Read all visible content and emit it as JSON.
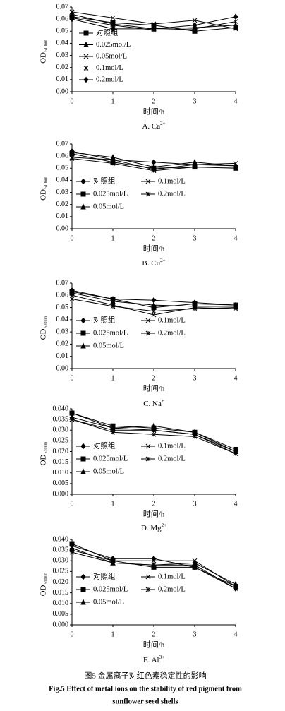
{
  "chart_data": [
    {
      "type": "line",
      "title": "A. Ca",
      "title_sup": "2+",
      "x_label": "时间/h",
      "y_label": "OD",
      "y_label_sub": "510nm",
      "x": [
        0,
        1,
        2,
        3,
        4
      ],
      "xlim": [
        0,
        4
      ],
      "xticks": [
        0,
        1,
        2,
        3,
        4
      ],
      "ylim": [
        0,
        0.07
      ],
      "yticks": [
        {
          "value": 0,
          "label": "0.00"
        },
        {
          "value": 0.01,
          "label": "0.01"
        },
        {
          "value": 0.02,
          "label": "0.02"
        },
        {
          "value": 0.03,
          "label": "0.03"
        },
        {
          "value": 0.04,
          "label": "0.04"
        },
        {
          "value": 0.05,
          "label": "0.05"
        },
        {
          "value": 0.06,
          "label": "0.06"
        },
        {
          "value": 0.07,
          "label": "0.07"
        }
      ],
      "series": [
        {
          "name": "对照组",
          "marker": "square",
          "color": "#000000",
          "values": [
            0.062,
            0.057,
            0.055,
            0.05,
            0.053
          ]
        },
        {
          "name": "0.025mol/L",
          "marker": "triangle",
          "color": "#000000",
          "values": [
            0.064,
            0.056,
            0.052,
            0.053,
            0.055
          ]
        },
        {
          "name": "0.05mol/L",
          "marker": "x",
          "color": "#000000",
          "values": [
            0.066,
            0.061,
            0.056,
            0.059,
            0.052
          ]
        },
        {
          "name": "0.1mol/L",
          "marker": "star",
          "color": "#000000",
          "values": [
            0.061,
            0.055,
            0.051,
            0.052,
            0.058
          ]
        },
        {
          "name": "0.2mol/L",
          "marker": "diamond",
          "color": "#000000",
          "values": [
            0.06,
            0.052,
            0.052,
            0.055,
            0.062
          ]
        }
      ]
    },
    {
      "type": "line",
      "title": "B. Cu",
      "title_sup": "2+",
      "x_label": "时间/h",
      "y_label": "OD",
      "y_label_sub": "510nm",
      "x": [
        0,
        1,
        2,
        3,
        4
      ],
      "xlim": [
        0,
        4
      ],
      "xticks": [
        0,
        1,
        2,
        3,
        4
      ],
      "ylim": [
        0,
        0.07
      ],
      "yticks": [
        {
          "value": 0,
          "label": "0.00"
        },
        {
          "value": 0.01,
          "label": "0.01"
        },
        {
          "value": 0.02,
          "label": "0.02"
        },
        {
          "value": 0.03,
          "label": "0.03"
        },
        {
          "value": 0.04,
          "label": "0.04"
        },
        {
          "value": 0.05,
          "label": "0.05"
        },
        {
          "value": 0.06,
          "label": "0.06"
        },
        {
          "value": 0.07,
          "label": "0.07"
        }
      ],
      "series": [
        {
          "name": "对照组",
          "marker": "diamond",
          "color": "#000000",
          "values": [
            0.064,
            0.057,
            0.055,
            0.053,
            0.052
          ]
        },
        {
          "name": "0.025mol/L",
          "marker": "square",
          "color": "#000000",
          "values": [
            0.062,
            0.055,
            0.05,
            0.051,
            0.05
          ]
        },
        {
          "name": "0.05mol/L",
          "marker": "triangle",
          "color": "#000000",
          "values": [
            0.063,
            0.059,
            0.051,
            0.055,
            0.052
          ]
        },
        {
          "name": "0.1mol/L",
          "marker": "x",
          "color": "#000000",
          "values": [
            0.059,
            0.057,
            0.049,
            0.053,
            0.054
          ]
        },
        {
          "name": "0.2mol/L",
          "marker": "star",
          "color": "#000000",
          "values": [
            0.058,
            0.054,
            0.048,
            0.051,
            0.051
          ]
        }
      ]
    },
    {
      "type": "line",
      "title": "C. Na",
      "title_sup": "+",
      "x_label": "时间/h",
      "y_label": "OD",
      "y_label_sub": "510nm",
      "x": [
        0,
        1,
        2,
        3,
        4
      ],
      "xlim": [
        0,
        4
      ],
      "xticks": [
        0,
        1,
        2,
        3,
        4
      ],
      "ylim": [
        0,
        0.07
      ],
      "yticks": [
        {
          "value": 0,
          "label": "0.00"
        },
        {
          "value": 0.01,
          "label": "0.01"
        },
        {
          "value": 0.02,
          "label": "0.02"
        },
        {
          "value": 0.03,
          "label": "0.03"
        },
        {
          "value": 0.04,
          "label": "0.04"
        },
        {
          "value": 0.05,
          "label": "0.05"
        },
        {
          "value": 0.06,
          "label": "0.06"
        },
        {
          "value": 0.07,
          "label": "0.07"
        }
      ],
      "series": [
        {
          "name": "对照组",
          "marker": "diamond",
          "color": "#000000",
          "values": [
            0.064,
            0.057,
            0.056,
            0.054,
            0.052
          ]
        },
        {
          "name": "0.025mol/L",
          "marker": "square",
          "color": "#000000",
          "values": [
            0.063,
            0.057,
            0.05,
            0.053,
            0.052
          ]
        },
        {
          "name": "0.05mol/L",
          "marker": "triangle",
          "color": "#000000",
          "values": [
            0.062,
            0.055,
            0.052,
            0.051,
            0.051
          ]
        },
        {
          "name": "0.1mol/L",
          "marker": "x",
          "color": "#000000",
          "values": [
            0.06,
            0.052,
            0.044,
            0.05,
            0.049
          ]
        },
        {
          "name": "0.2mol/L",
          "marker": "star",
          "color": "#000000",
          "values": [
            0.057,
            0.051,
            0.047,
            0.049,
            0.05
          ]
        }
      ]
    },
    {
      "type": "line",
      "title": "D. Mg",
      "title_sup": "2+",
      "x_label": "时间/h",
      "y_label": "OD",
      "y_label_sub": "510nm",
      "x": [
        0,
        1,
        2,
        3,
        4
      ],
      "xlim": [
        0,
        4
      ],
      "xticks": [
        0,
        1,
        2,
        3,
        4
      ],
      "ylim": [
        0,
        0.04
      ],
      "yticks": [
        {
          "value": 0,
          "label": "0.000"
        },
        {
          "value": 0.005,
          "label": "0.005"
        },
        {
          "value": 0.01,
          "label": "0.010"
        },
        {
          "value": 0.015,
          "label": "0.015"
        },
        {
          "value": 0.02,
          "label": "0.020"
        },
        {
          "value": 0.025,
          "label": "0.025"
        },
        {
          "value": 0.03,
          "label": "0.030"
        },
        {
          "value": 0.035,
          "label": "0.035"
        },
        {
          "value": 0.04,
          "label": "0.040"
        }
      ],
      "series": [
        {
          "name": "对照组",
          "marker": "diamond",
          "color": "#000000",
          "values": [
            0.038,
            0.031,
            0.03,
            0.028,
            0.02
          ]
        },
        {
          "name": "0.025mol/L",
          "marker": "square",
          "color": "#000000",
          "values": [
            0.038,
            0.032,
            0.031,
            0.029,
            0.021
          ]
        },
        {
          "name": "0.05mol/L",
          "marker": "triangle",
          "color": "#000000",
          "values": [
            0.036,
            0.031,
            0.032,
            0.029,
            0.02
          ]
        },
        {
          "name": "0.1mol/L",
          "marker": "x",
          "color": "#000000",
          "values": [
            0.035,
            0.03,
            0.03,
            0.028,
            0.019
          ]
        },
        {
          "name": "0.2mol/L",
          "marker": "star",
          "color": "#000000",
          "values": [
            0.035,
            0.029,
            0.028,
            0.027,
            0.019
          ]
        }
      ]
    },
    {
      "type": "line",
      "title": "E. Al",
      "title_sup": "3+",
      "x_label": "时间/h",
      "y_label": "OD",
      "y_label_sub": "510nm",
      "x": [
        0,
        1,
        2,
        3,
        4
      ],
      "xlim": [
        0,
        4
      ],
      "xticks": [
        0,
        1,
        2,
        3,
        4
      ],
      "ylim": [
        0,
        0.04
      ],
      "yticks": [
        {
          "value": 0,
          "label": "0.000"
        },
        {
          "value": 0.005,
          "label": "0.005"
        },
        {
          "value": 0.01,
          "label": "0.010"
        },
        {
          "value": 0.015,
          "label": "0.015"
        },
        {
          "value": 0.02,
          "label": "0.020"
        },
        {
          "value": 0.025,
          "label": "0.025"
        },
        {
          "value": 0.03,
          "label": "0.030"
        },
        {
          "value": 0.035,
          "label": "0.035"
        },
        {
          "value": 0.04,
          "label": "0.040"
        }
      ],
      "series": [
        {
          "name": "对照组",
          "marker": "diamond",
          "color": "#000000",
          "values": [
            0.037,
            0.031,
            0.031,
            0.027,
            0.017
          ]
        },
        {
          "name": "0.025mol/L",
          "marker": "square",
          "color": "#000000",
          "values": [
            0.038,
            0.03,
            0.027,
            0.027,
            0.018
          ]
        },
        {
          "name": "0.05mol/L",
          "marker": "triangle",
          "color": "#000000",
          "values": [
            0.036,
            0.029,
            0.028,
            0.029,
            0.019
          ]
        },
        {
          "name": "0.1mol/L",
          "marker": "x",
          "color": "#000000",
          "values": [
            0.035,
            0.03,
            0.03,
            0.03,
            0.018
          ]
        },
        {
          "name": "0.2mol/L",
          "marker": "star",
          "color": "#000000",
          "values": [
            0.034,
            0.029,
            0.028,
            0.028,
            0.017
          ]
        }
      ]
    }
  ],
  "figure_caption": {
    "cn": "图5  金属离子对红色素稳定性的影响",
    "en_line1": "Fig.5   Effect of metal ions on the stability of red pigment from",
    "en_line2": "sunflower seed shells"
  }
}
